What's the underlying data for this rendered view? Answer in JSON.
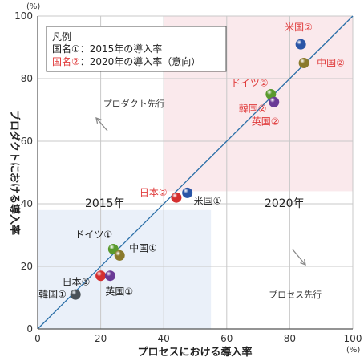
{
  "chart_data": {
    "type": "scatter",
    "xlabel": "プロセスにおける導入率",
    "ylabel": "プロダクトにおける導入率",
    "x_unit": "(%)",
    "y_unit": "(%)",
    "xlim": [
      0,
      100
    ],
    "ylim": [
      0,
      100
    ],
    "x_ticks": [
      "0",
      "20",
      "40",
      "60",
      "80",
      "100"
    ],
    "y_ticks": [
      "0",
      "20",
      "40",
      "60",
      "80",
      "100"
    ],
    "grid": true,
    "regions": [
      {
        "label": "2015年",
        "x": [
          0,
          55
        ],
        "y": [
          0,
          38
        ],
        "color": "#eaf0f9"
      },
      {
        "label": "2020年",
        "x": [
          40,
          100
        ],
        "y": [
          44,
          100
        ],
        "color": "#fae9ec"
      }
    ],
    "diagonal": {
      "from": [
        0,
        0
      ],
      "to": [
        100,
        100
      ],
      "color": "#2b6fa8"
    },
    "legend": {
      "title": "凡例",
      "items": [
        {
          "key": "国名①",
          "text": "：2015年の導入率",
          "color": "#222222"
        },
        {
          "key": "国名②",
          "text": "：2020年の導入率（意向）",
          "color": "#e03c3c"
        }
      ]
    },
    "annotations": [
      {
        "text": "プロダクト先行",
        "x": 20,
        "y": 72
      },
      {
        "text": "プロセス先行",
        "x": 84,
        "y": 11
      }
    ],
    "points": [
      {
        "label": "米国②",
        "x": 83.5,
        "y": 91,
        "color": "#2a55a6",
        "label_color": "#e03c3c"
      },
      {
        "label": "中国②",
        "x": 84.5,
        "y": 85,
        "color": "#8a7a2c",
        "label_color": "#e03c3c"
      },
      {
        "label": "ドイツ②",
        "x": 74,
        "y": 75,
        "color": "#5a9a2e",
        "label_color": "#e03c3c"
      },
      {
        "label": "韓国②",
        "x": 75,
        "y": 72.5,
        "color": "#6a3a96",
        "label_color": "#e03c3c"
      },
      {
        "label": "英国②",
        "x": 75,
        "y": 72.5,
        "color": "#6a3a96",
        "label_color": "#e03c3c"
      },
      {
        "label": "日本②",
        "x": 44,
        "y": 42,
        "color": "#d42f2f",
        "label_color": "#e03c3c"
      },
      {
        "label": "米国①",
        "x": 47.5,
        "y": 43.5,
        "color": "#2a55a6",
        "label_color": "#222222"
      },
      {
        "label": "ドイツ①",
        "x": 24,
        "y": 25.5,
        "color": "#5a9a2e",
        "label_color": "#222222"
      },
      {
        "label": "中国①",
        "x": 26,
        "y": 23.5,
        "color": "#8a7a2c",
        "label_color": "#222222"
      },
      {
        "label": "日本①",
        "x": 20,
        "y": 17,
        "color": "#d42f2f",
        "label_color": "#222222"
      },
      {
        "label": "韓国①",
        "x": 12,
        "y": 11,
        "color": "#4a5258",
        "label_color": "#222222"
      },
      {
        "label": "英国①",
        "x": 23,
        "y": 17,
        "color": "#6a3a96",
        "label_color": "#222222"
      }
    ]
  }
}
